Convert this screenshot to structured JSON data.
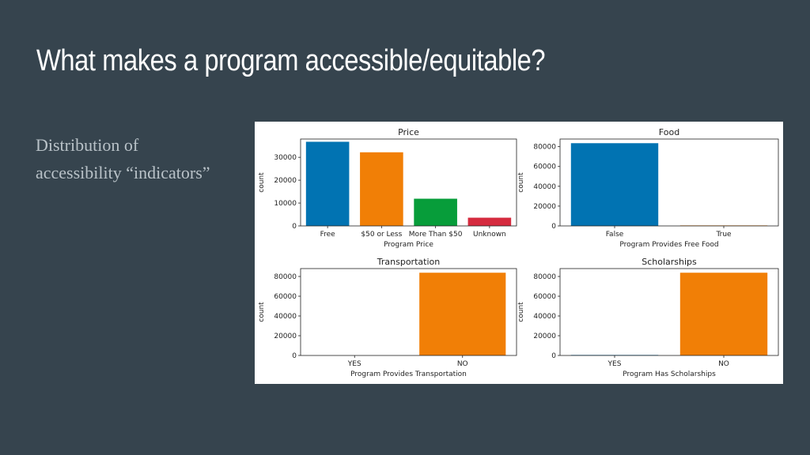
{
  "slide": {
    "title": "What makes a program accessible/equitable?",
    "subtitle_line1": "Distribution of",
    "subtitle_line2": "accessibility “indicators”"
  },
  "colors": {
    "background": "#36444e",
    "title": "#ffffff",
    "subtitle": "#b9c2c8",
    "blue": "#0173b2",
    "orange": "#de8f05",
    "orange_bar": "#f17f06",
    "green": "#029e73",
    "red": "#d52b3f"
  },
  "chart_data": [
    {
      "type": "bar",
      "title": "Price",
      "xlabel": "Program Price",
      "ylabel": "count",
      "categories": [
        "Free",
        "$50 or Less",
        "More Than $50",
        "Unknown"
      ],
      "values": [
        36800,
        32200,
        11900,
        3600
      ],
      "colors": [
        "#0173b2",
        "#f17f06",
        "#079d3a",
        "#d52b3f"
      ],
      "ylim": [
        0,
        38000
      ],
      "yticks": [
        0,
        10000,
        20000,
        30000
      ],
      "ytick_labels": [
        "0",
        "10000",
        "20000",
        "30000"
      ]
    },
    {
      "type": "bar",
      "title": "Food",
      "xlabel": "Program Provides Free Food",
      "ylabel": "count",
      "categories": [
        "False",
        "True"
      ],
      "values": [
        83500,
        500
      ],
      "colors": [
        "#0173b2",
        "#f17f06"
      ],
      "ylim": [
        0,
        87700
      ],
      "yticks": [
        0,
        20000,
        40000,
        60000,
        80000
      ],
      "ytick_labels": [
        "0",
        "20000",
        "40000",
        "60000",
        "80000"
      ]
    },
    {
      "type": "bar",
      "title": "Transportation",
      "xlabel": "Program Provides Transportation",
      "ylabel": "count",
      "categories": [
        "YES",
        "NO"
      ],
      "values": [
        0,
        83800
      ],
      "colors": [
        "#0173b2",
        "#f17f06"
      ],
      "ylim": [
        0,
        88000
      ],
      "yticks": [
        0,
        20000,
        40000,
        60000,
        80000
      ],
      "ytick_labels": [
        "0",
        "20000",
        "40000",
        "60000",
        "80000"
      ]
    },
    {
      "type": "bar",
      "title": "Scholarships",
      "xlabel": "Program Has Scholarships",
      "ylabel": "count",
      "categories": [
        "YES",
        "NO"
      ],
      "values": [
        500,
        83800
      ],
      "colors": [
        "#0173b2",
        "#f17f06"
      ],
      "ylim": [
        0,
        88000
      ],
      "yticks": [
        0,
        20000,
        40000,
        60000,
        80000
      ],
      "ytick_labels": [
        "0",
        "20000",
        "40000",
        "60000",
        "80000"
      ]
    }
  ]
}
